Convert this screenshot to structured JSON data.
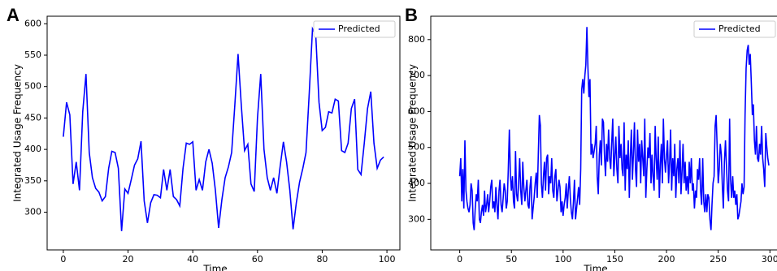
{
  "chart_data": [
    {
      "type": "line",
      "label": "A",
      "xlabel": "Time",
      "ylabel": "Integrated Usage Frequency",
      "xlim": [
        -5,
        104
      ],
      "ylim": [
        240,
        612
      ],
      "xticks": [
        0,
        20,
        40,
        60,
        80,
        100
      ],
      "yticks": [
        300,
        350,
        400,
        450,
        500,
        550,
        600
      ],
      "legend": "upper right",
      "series": [
        {
          "name": "Predicted",
          "color": "#0000ff",
          "values": [
            420,
            475,
            455,
            345,
            380,
            335,
            460,
            520,
            395,
            355,
            338,
            332,
            318,
            325,
            370,
            397,
            395,
            370,
            270,
            337,
            330,
            352,
            375,
            385,
            413,
            318,
            283,
            315,
            328,
            327,
            323,
            368,
            335,
            368,
            325,
            320,
            310,
            370,
            410,
            408,
            412,
            335,
            352,
            335,
            380,
            400,
            378,
            335,
            275,
            320,
            355,
            372,
            395,
            470,
            552,
            470,
            398,
            408,
            345,
            333,
            450,
            520,
            400,
            355,
            335,
            355,
            330,
            373,
            412,
            380,
            335,
            273,
            315,
            348,
            370,
            395,
            490,
            592,
            582,
            475,
            430,
            435,
            460,
            458,
            480,
            477,
            398,
            395,
            410,
            465,
            480,
            368,
            360,
            410,
            465,
            492,
            410,
            370,
            383,
            388
          ]
        }
      ]
    },
    {
      "type": "line",
      "label": "B",
      "xlabel": "Time",
      "ylabel": "Integrated Usage Frequency",
      "xlim": [
        -28,
        310
      ],
      "ylim": [
        215,
        865
      ],
      "xticks": [
        0,
        50,
        100,
        150,
        200,
        250,
        300
      ],
      "yticks": [
        300,
        400,
        500,
        600,
        700,
        800
      ],
      "legend": "upper right",
      "series": [
        {
          "name": "Predicted",
          "color": "#0000ff",
          "values": [
            420,
            470,
            350,
            440,
            330,
            520,
            380,
            350,
            330,
            320,
            340,
            400,
            380,
            290,
            270,
            330,
            370,
            350,
            410,
            300,
            290,
            320,
            340,
            310,
            380,
            320,
            340,
            370,
            320,
            350,
            390,
            410,
            330,
            350,
            320,
            390,
            340,
            300,
            380,
            410,
            340,
            320,
            360,
            400,
            380,
            330,
            350,
            440,
            550,
            420,
            380,
            420,
            350,
            330,
            490,
            370,
            350,
            400,
            470,
            380,
            340,
            460,
            390,
            350,
            380,
            410,
            340,
            330,
            390,
            420,
            300,
            330,
            360,
            400,
            430,
            360,
            480,
            590,
            560,
            400,
            360,
            420,
            460,
            380,
            470,
            480,
            370,
            420,
            400,
            470,
            380,
            360,
            420,
            440,
            350,
            380,
            410,
            390,
            320,
            350,
            310,
            340,
            360,
            400,
            330,
            380,
            420,
            360,
            320,
            300,
            350,
            410,
            300,
            330,
            360,
            390,
            340,
            440,
            660,
            690,
            650,
            700,
            730,
            835,
            720,
            640,
            690,
            480,
            510,
            470,
            490,
            510,
            560,
            420,
            370,
            480,
            520,
            450,
            580,
            570,
            480,
            420,
            510,
            460,
            550,
            470,
            440,
            510,
            580,
            420,
            470,
            530,
            440,
            400,
            560,
            470,
            510,
            440,
            420,
            570,
            380,
            480,
            440,
            520,
            360,
            470,
            550,
            410,
            480,
            570,
            440,
            390,
            550,
            460,
            510,
            400,
            520,
            470,
            420,
            580,
            360,
            440,
            500,
            470,
            540,
            400,
            480,
            420,
            380,
            560,
            470,
            410,
            530,
            360,
            450,
            510,
            400,
            580,
            470,
            430,
            480,
            520,
            400,
            460,
            550,
            380,
            470,
            420,
            510,
            360,
            440,
            470,
            400,
            520,
            370,
            430,
            510,
            400,
            460,
            380,
            420,
            370,
            460,
            400,
            470,
            380,
            400,
            330,
            380,
            360,
            440,
            410,
            470,
            380,
            340,
            470,
            350,
            320,
            370,
            320,
            370,
            360,
            300,
            270,
            340,
            400,
            420,
            560,
            590,
            500,
            400,
            440,
            510,
            480,
            390,
            330,
            460,
            520,
            450,
            380,
            350,
            580,
            410,
            360,
            420,
            360,
            380,
            340,
            370,
            300,
            310,
            330,
            350,
            400,
            370,
            390,
            590,
            720,
            770,
            785,
            730,
            760,
            680,
            590,
            620,
            520,
            480,
            560,
            470,
            460,
            510,
            480,
            560,
            470,
            440,
            390,
            540,
            500,
            470,
            450
          ]
        }
      ]
    }
  ]
}
